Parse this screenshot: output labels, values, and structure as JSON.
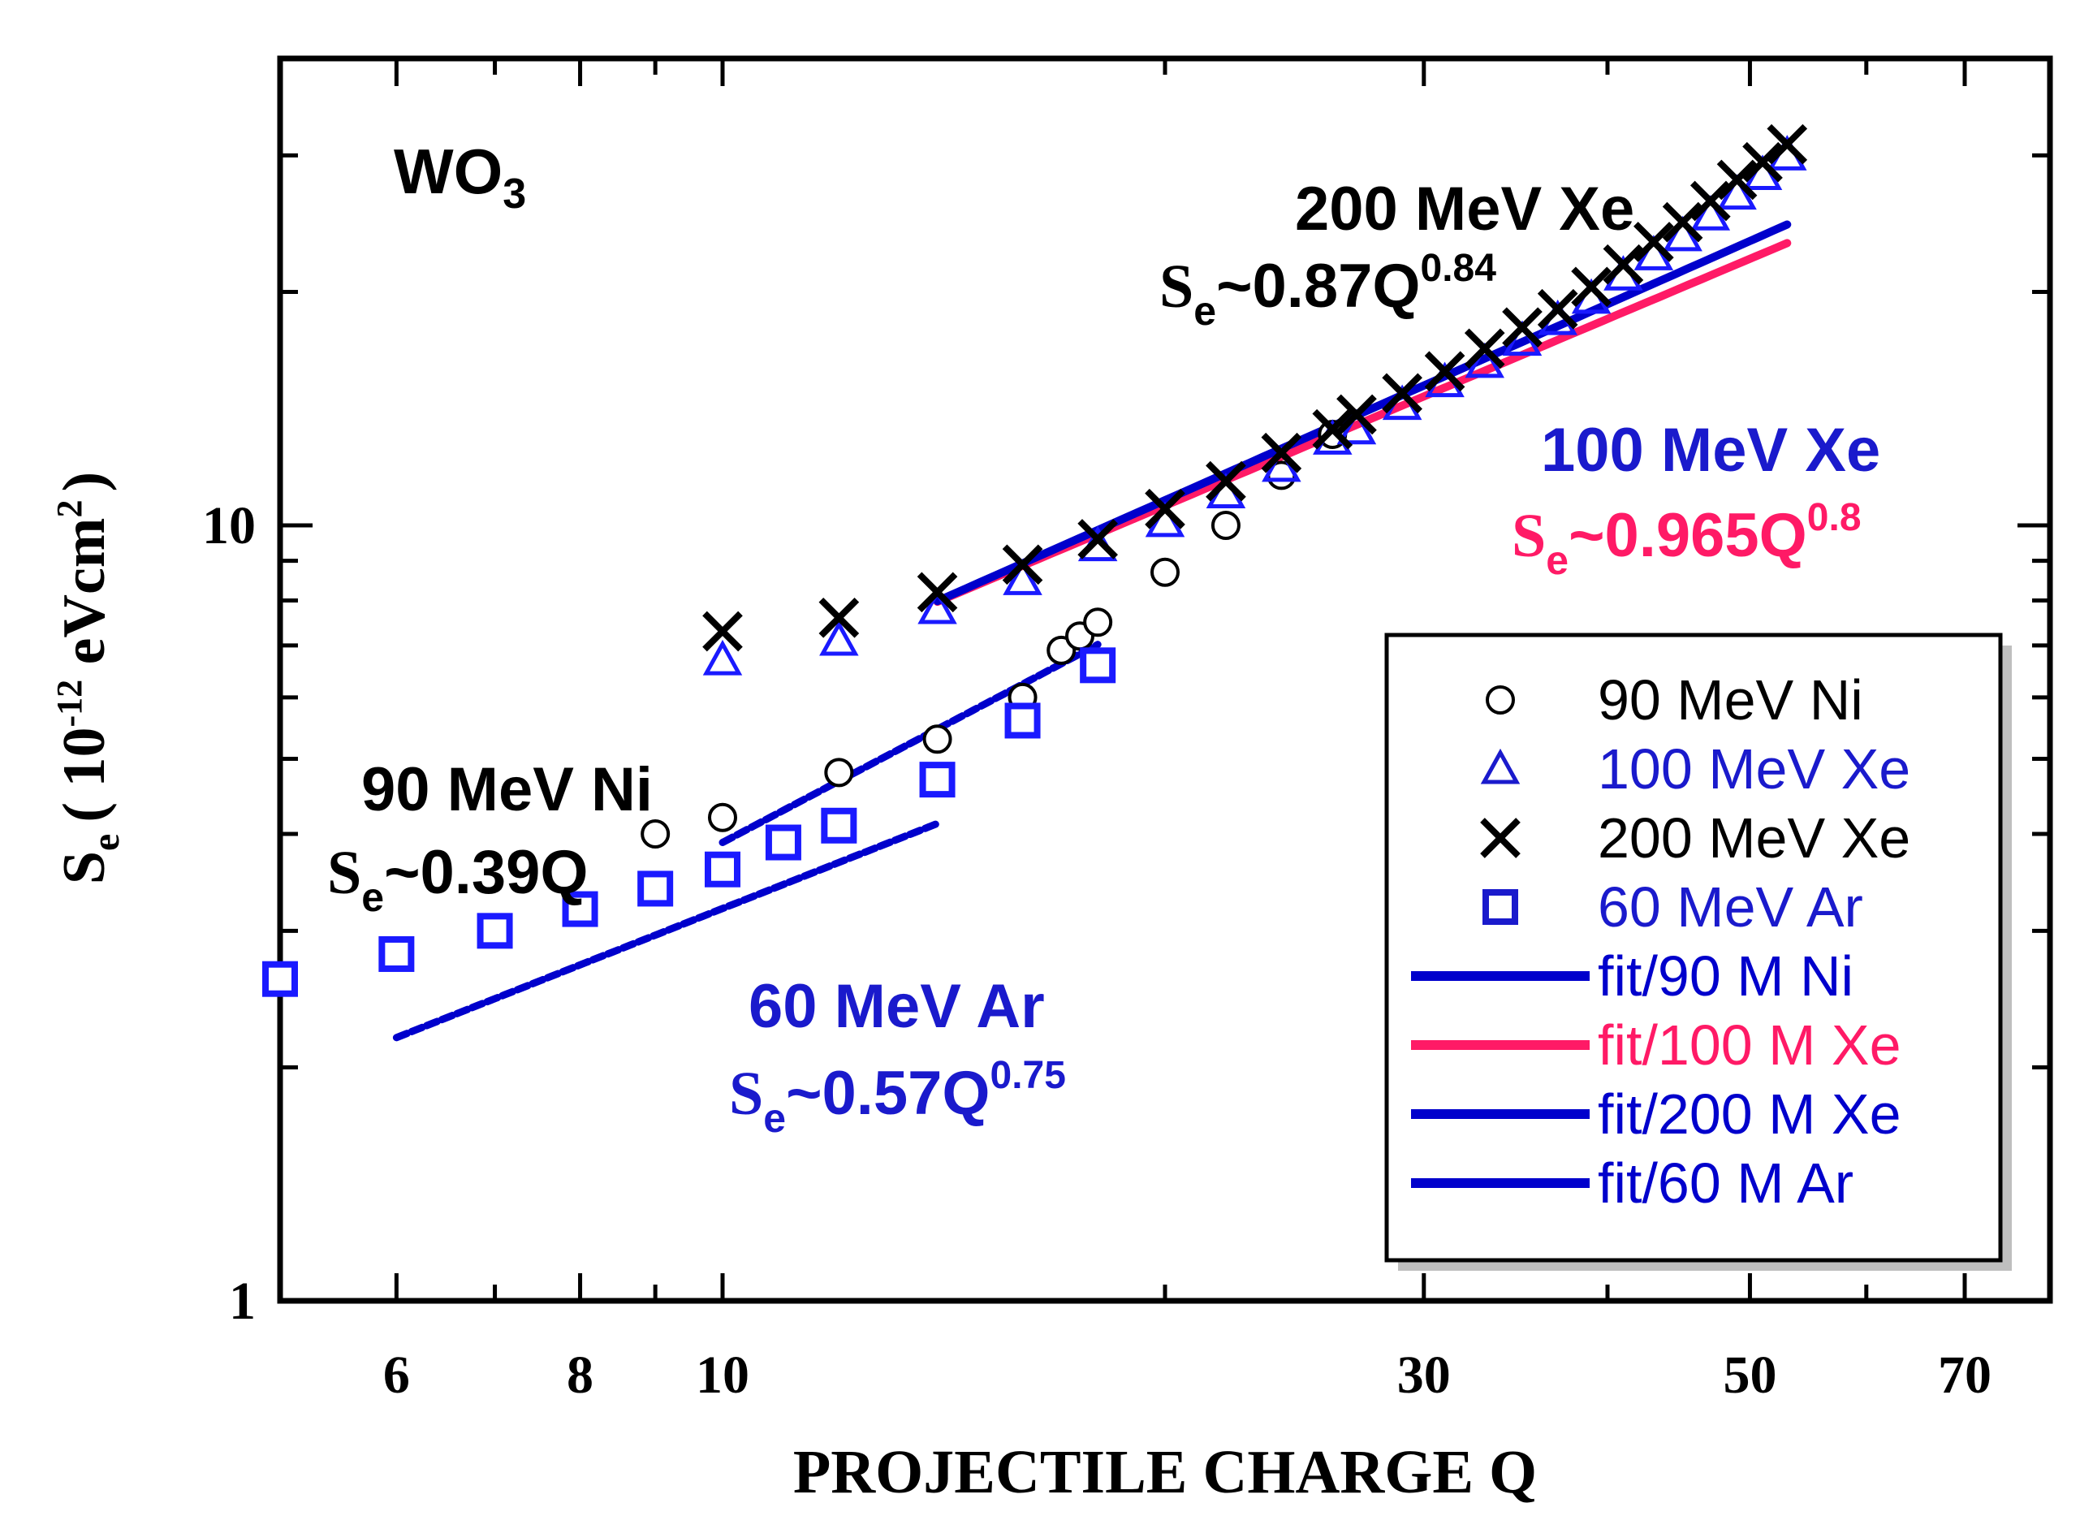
{
  "chart_data": {
    "type": "scatter",
    "title": "",
    "xlabel": "PROJECTILE  CHARGE  Q",
    "ylabel": "S",
    "ylabel_sub": "e",
    "ylabel_units": "( 10",
    "ylabel_units_exp": "-12",
    "ylabel_units_tail": " eVcm",
    "ylabel_units_exp2": "2",
    "ylabel_units_close": ")",
    "xscale": "log",
    "yscale": "log",
    "xlim": [
      5,
      80
    ],
    "ylim": [
      1,
      40
    ],
    "xticks": [
      6,
      8,
      10,
      30,
      50,
      70
    ],
    "xtick_labels": [
      "6",
      "8",
      "10",
      "30",
      "50",
      "70"
    ],
    "yticks": [
      1,
      10
    ],
    "ytick_labels": [
      "1",
      "10"
    ],
    "material": "WO",
    "material_sub": "3",
    "series": [
      {
        "name": "90 MeV Ni",
        "marker": "circle",
        "color": "#000000",
        "x": [
          9,
          10,
          12,
          14,
          16,
          17,
          17.5,
          18,
          20,
          22,
          24,
          26
        ],
        "y": [
          4.0,
          4.2,
          4.8,
          5.3,
          6.0,
          6.9,
          7.2,
          7.5,
          8.7,
          10.0,
          11.6,
          13.1
        ]
      },
      {
        "name": "100 MeV Xe",
        "marker": "triangle",
        "color": "#1a1aff",
        "x": [
          10,
          12,
          14,
          16,
          18,
          20,
          22,
          24,
          26,
          27,
          29,
          31,
          33,
          35,
          37,
          39,
          41,
          43,
          45,
          47,
          49,
          51,
          53
        ],
        "y": [
          6.7,
          7.1,
          7.8,
          8.5,
          9.4,
          10.1,
          11.0,
          11.9,
          12.9,
          13.3,
          14.3,
          15.3,
          16.2,
          17.3,
          18.4,
          19.6,
          21.0,
          22.3,
          23.6,
          25.1,
          26.7,
          28.3,
          30.0
        ]
      },
      {
        "name": "200 MeV Xe",
        "marker": "cross",
        "color": "#000000",
        "x": [
          10,
          12,
          14,
          16,
          18,
          20,
          22,
          24,
          26,
          27,
          29,
          31,
          33,
          35,
          37,
          39,
          41,
          43,
          45,
          47,
          49,
          51,
          53
        ],
        "y": [
          7.3,
          7.6,
          8.2,
          8.9,
          9.6,
          10.5,
          11.4,
          12.4,
          13.3,
          13.9,
          14.8,
          15.8,
          16.9,
          18.0,
          19.0,
          20.3,
          21.7,
          23.2,
          24.6,
          26.2,
          27.9,
          29.4,
          31.0
        ]
      },
      {
        "name": "60 MeV Ar",
        "marker": "square",
        "color": "#1a1aff",
        "x": [
          5,
          6,
          7,
          8,
          9,
          10,
          11,
          12,
          14,
          16,
          18
        ],
        "y": [
          2.6,
          2.8,
          3.0,
          3.2,
          3.4,
          3.6,
          3.9,
          4.1,
          4.7,
          5.6,
          6.6
        ]
      }
    ],
    "fits": [
      {
        "name": "fit/90 M Ni",
        "color": "#0000cc",
        "coef": 0.39,
        "exp": 1.0,
        "x_range": [
          10,
          18
        ],
        "dashed": true
      },
      {
        "name": "fit/100 M Xe",
        "color": "#ff1a66",
        "coef": 0.965,
        "exp": 0.8,
        "x_range": [
          14,
          53
        ],
        "dashed": false
      },
      {
        "name": "fit/200 M Xe",
        "color": "#0000cc",
        "coef": 0.87,
        "exp": 0.84,
        "x_range": [
          14,
          53
        ],
        "dashed": false
      },
      {
        "name": "fit/60 M Ar",
        "color": "#0000cc",
        "coef": 0.57,
        "exp": 0.75,
        "x_range": [
          6,
          14
        ],
        "dashed": true
      }
    ],
    "annotations": [
      {
        "id": "xe200",
        "label": "200 MeV Xe",
        "formula_coef": "~0.87Q",
        "formula_exp": "0.84",
        "color": "#000000"
      },
      {
        "id": "xe100",
        "label": "100 MeV Xe",
        "formula_coef": "~0.965Q",
        "formula_exp": "0.8",
        "color": "#ff1a66",
        "label_color": "#1a1acc"
      },
      {
        "id": "ni90",
        "label": "90 MeV Ni",
        "formula_coef": "~0.39Q",
        "formula_exp": "",
        "color": "#000000"
      },
      {
        "id": "ar60",
        "label": "60 MeV Ar",
        "formula_coef": "~0.57Q",
        "formula_exp": "0.75",
        "color": "#1a1acc"
      }
    ],
    "formula_symbol": "S",
    "formula_sub": "e",
    "legend": {
      "position": "bottom-right",
      "entries": [
        {
          "label": "90 MeV Ni",
          "kind": "circle",
          "color": "#000000"
        },
        {
          "label": "100 MeV Xe",
          "kind": "triangle",
          "color": "#1a1acc"
        },
        {
          "label": "200 MeV Xe",
          "kind": "cross",
          "color": "#000000"
        },
        {
          "label": "60 MeV Ar",
          "kind": "square",
          "color": "#1a1acc"
        },
        {
          "label": "fit/90 M Ni",
          "kind": "line",
          "color": "#0000cc"
        },
        {
          "label": "fit/100 M Xe",
          "kind": "line",
          "color": "#ff1a66"
        },
        {
          "label": "fit/200 M Xe",
          "kind": "line",
          "color": "#0000cc"
        },
        {
          "label": "fit/60 M Ar",
          "kind": "line",
          "color": "#0000cc"
        }
      ]
    }
  }
}
